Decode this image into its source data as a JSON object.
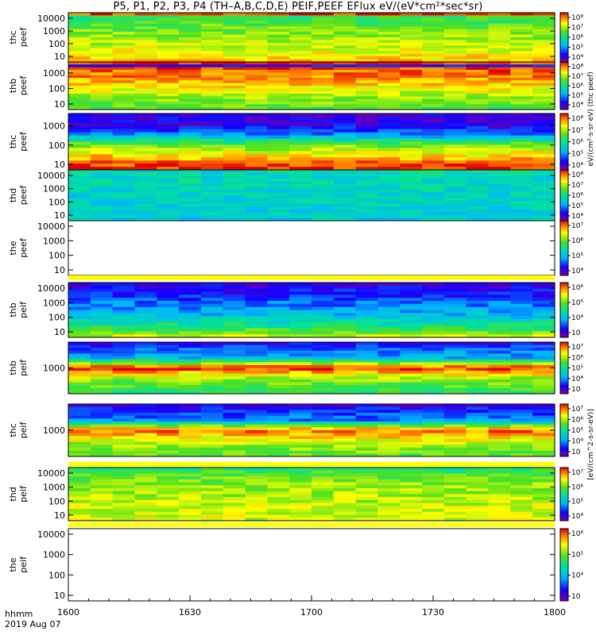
{
  "title": "P5, P1, P2, P3, P4 (TH–A,B,C,D,E) PEIF,PEEF EFlux eV/(eV*cm²*sec*sr)",
  "footer": {
    "line1": "hhmm",
    "line2": "2019 Aug 07"
  },
  "x_axis": {
    "ticks": [
      "1600",
      "1630",
      "1700",
      "1730",
      "1800"
    ]
  },
  "chart_data": {
    "type": "heatmap",
    "title": "P5, P1, P2, P3, P4 (TH–A,B,C,D,E) PEIF,PEEF EFlux eV/(eV*cm²*sec*sr)",
    "x_range_hhmm": [
      "1600",
      "1800"
    ],
    "x_ticks": [
      "1600",
      "1630",
      "1700",
      "1730",
      "1800"
    ],
    "colormap": "rainbow (purple→blue→cyan→green→yellow→red)",
    "panels": [
      {
        "label": [
          "thc",
          "peef"
        ],
        "yscale": "log",
        "yticks": [
          "10",
          "100",
          "1000",
          "10000"
        ],
        "colorbar_ticks": [
          "10⁴",
          "10⁵",
          "10⁶",
          "10⁷",
          "10⁸"
        ],
        "pattern": [
          [
            0.02,
            0.95
          ],
          [
            0.06,
            0.55
          ],
          [
            0.25,
            0.62
          ],
          [
            0.55,
            0.7
          ],
          [
            0.8,
            0.76
          ],
          [
            1.0,
            0.82
          ]
        ]
      },
      {
        "label": [
          "thb",
          "peef"
        ],
        "yscale": "log",
        "yticks": [
          "10",
          "100",
          "1000"
        ],
        "colorbar_ticks": [
          "10⁴",
          "10⁵",
          "10⁶",
          "10⁷",
          "10⁸"
        ],
        "pattern": [
          [
            0.0,
            0.97
          ],
          [
            0.06,
            0.12
          ],
          [
            0.1,
            0.95
          ],
          [
            0.4,
            0.85
          ],
          [
            0.7,
            0.72
          ],
          [
            1.0,
            0.6
          ]
        ]
      },
      {
        "label": [
          "thc",
          "peef"
        ],
        "yscale": "log",
        "yticks": [
          "10",
          "100",
          "1000"
        ],
        "colorbar_ticks": [
          "10⁴",
          "10⁵",
          "10⁶",
          "10⁷",
          "10⁸"
        ],
        "pattern": [
          [
            0.0,
            0.1
          ],
          [
            0.2,
            0.12
          ],
          [
            0.35,
            0.25
          ],
          [
            0.55,
            0.62
          ],
          [
            0.8,
            0.85
          ],
          [
            1.0,
            0.98
          ]
        ]
      },
      {
        "label": [
          "thd",
          "peef"
        ],
        "yscale": "log",
        "yticks": [
          "10",
          "100",
          "1000",
          "10000"
        ],
        "colorbar_ticks": [
          "10⁴",
          "10⁵",
          "10⁶",
          "10⁷",
          "10⁸"
        ],
        "pattern": [
          [
            0.0,
            0.45
          ],
          [
            0.5,
            0.42
          ],
          [
            1.0,
            0.4
          ]
        ]
      },
      {
        "label": [
          "the",
          "peef"
        ],
        "yscale": "log",
        "yticks": [
          "10",
          "100",
          "1000",
          "10000"
        ],
        "colorbar_ticks": [
          "10⁴",
          "10⁵",
          "10⁶",
          "10⁷"
        ],
        "pattern": []
      },
      {
        "label": [
          "thb",
          "peif"
        ],
        "yscale": "log",
        "yticks": [
          "10",
          "100",
          "1000",
          "10000"
        ],
        "colorbar_ticks": [
          "10⁳",
          "10⁴",
          "10⁵",
          "10⁶"
        ],
        "pattern": [
          [
            0.0,
            0.1
          ],
          [
            0.3,
            0.22
          ],
          [
            0.6,
            0.35
          ],
          [
            0.85,
            0.55
          ],
          [
            1.0,
            0.72
          ]
        ]
      },
      {
        "label": [
          "thb",
          "peif"
        ],
        "yscale": "log",
        "yticks": [
          "1000"
        ],
        "colorbar_ticks": [
          "10⁳",
          "10⁴",
          "10⁵",
          "10⁶",
          "10⁷"
        ],
        "pattern": [
          [
            0.0,
            0.15
          ],
          [
            0.3,
            0.35
          ],
          [
            0.5,
            0.98
          ],
          [
            0.7,
            0.7
          ],
          [
            1.0,
            0.55
          ]
        ]
      },
      {
        "label": [
          "thc",
          "peif"
        ],
        "yscale": "log",
        "yticks": [
          "1000"
        ],
        "colorbar_ticks": [
          "10⁳",
          "10⁴",
          "10⁵",
          "10⁶",
          "10⁷"
        ],
        "pattern": [
          [
            0.0,
            0.12
          ],
          [
            0.3,
            0.28
          ],
          [
            0.5,
            0.92
          ],
          [
            0.75,
            0.72
          ],
          [
            1.0,
            0.62
          ]
        ]
      },
      {
        "label": [
          "thd",
          "peif"
        ],
        "yscale": "log",
        "yticks": [
          "10",
          "100",
          "1000",
          "10000"
        ],
        "colorbar_ticks": [
          "10⁴",
          "10⁵",
          "10⁶",
          "10⁷"
        ],
        "pattern": [
          [
            0.0,
            0.55
          ],
          [
            0.3,
            0.68
          ],
          [
            0.7,
            0.72
          ],
          [
            1.0,
            0.74
          ]
        ]
      },
      {
        "label": [
          "the",
          "peif"
        ],
        "yscale": "log",
        "yticks": [
          "10",
          "100",
          "1000",
          "10000"
        ],
        "colorbar_ticks": [
          "10⁳",
          "10⁴",
          "10⁵",
          "10⁶"
        ],
        "pattern": []
      }
    ],
    "colorbar_labels": [
      "eV/(cm²·s·sr·eV) (thc peef)",
      "[eV/(cm^2-s-sr-eV)]"
    ]
  }
}
